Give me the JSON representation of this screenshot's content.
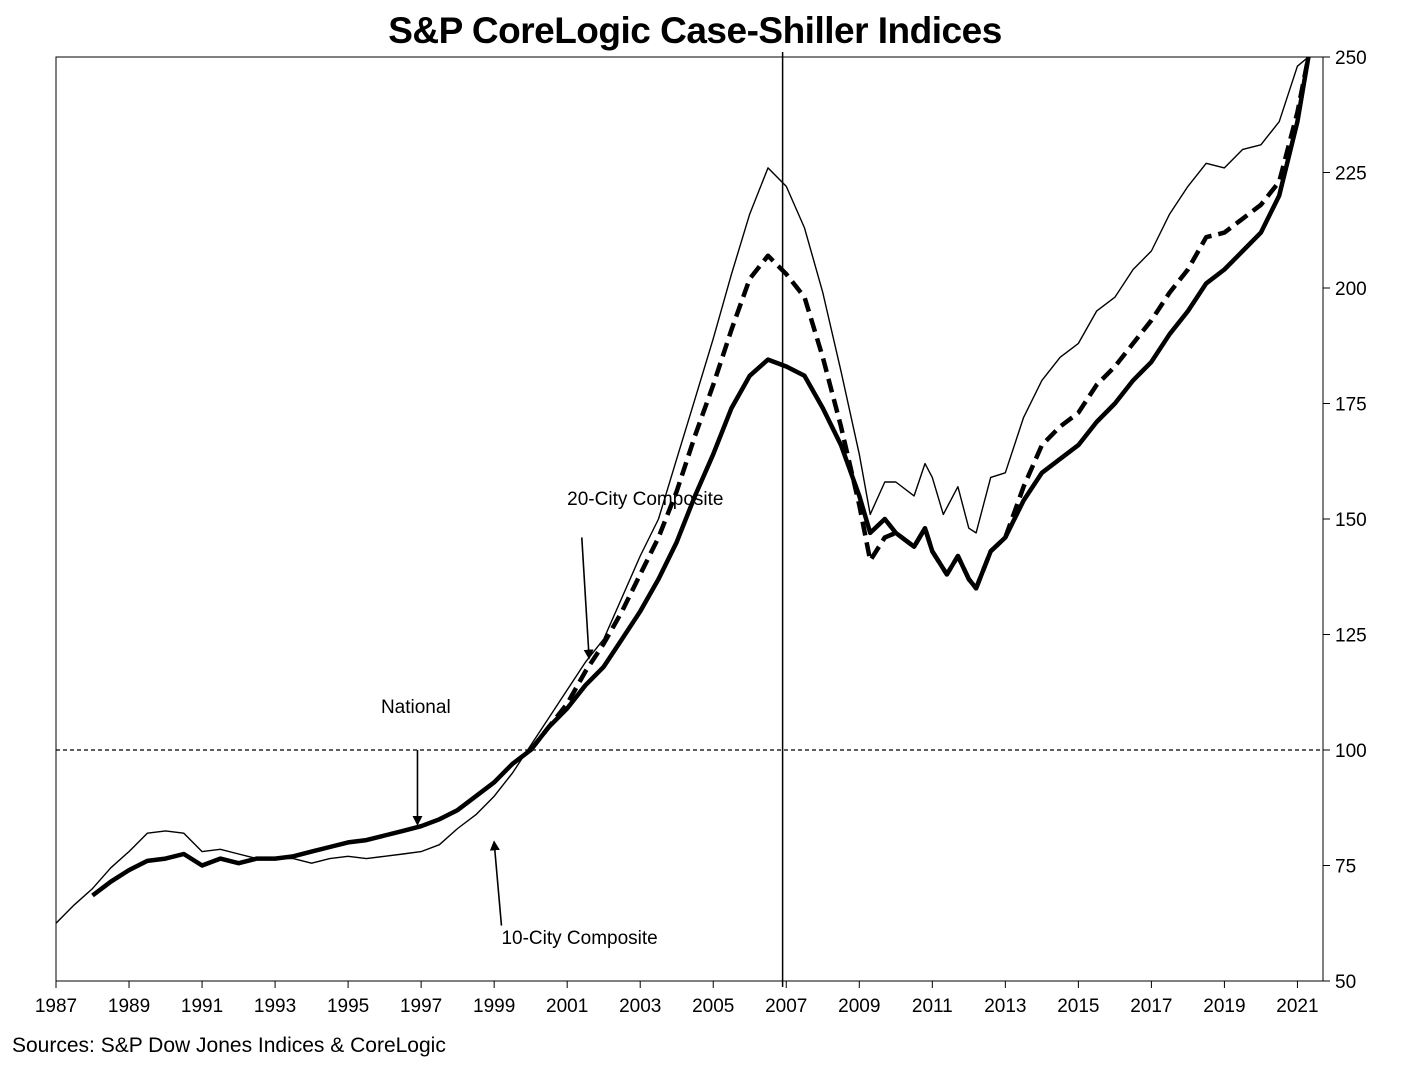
{
  "chart_data": {
    "type": "line",
    "title": "S&P CoreLogic Case-Shiller Indices",
    "source": "Sources:  S&P Dow Jones Indices & CoreLogic",
    "xlabel": "",
    "ylabel": "",
    "xlim": [
      1987,
      2021.7
    ],
    "ylim": [
      50,
      250
    ],
    "x_ticks": [
      1987,
      1989,
      1991,
      1993,
      1995,
      1997,
      1999,
      2001,
      2003,
      2005,
      2007,
      2009,
      2011,
      2013,
      2015,
      2017,
      2019,
      2021
    ],
    "y_ticks": [
      50,
      75,
      100,
      125,
      150,
      175,
      200,
      225,
      250
    ],
    "y_axis_side": "right",
    "grid": false,
    "reference_lines": [
      {
        "axis": "y",
        "value": 100,
        "style": "dashed"
      },
      {
        "axis": "x",
        "value": 2006.9,
        "style": "solid"
      }
    ],
    "series": [
      {
        "name": "10-City Composite",
        "style": "thin solid",
        "points": [
          [
            1987.0,
            62.5
          ],
          [
            1987.5,
            66.5
          ],
          [
            1988.0,
            70
          ],
          [
            1988.5,
            74.5
          ],
          [
            1989.0,
            78
          ],
          [
            1989.5,
            82
          ],
          [
            1990.0,
            82.5
          ],
          [
            1990.5,
            82
          ],
          [
            1991.0,
            78
          ],
          [
            1991.5,
            78.5
          ],
          [
            1992.0,
            77.5
          ],
          [
            1992.5,
            76.5
          ],
          [
            1993.0,
            76.5
          ],
          [
            1993.5,
            76.5
          ],
          [
            1994.0,
            75.5
          ],
          [
            1994.5,
            76.5
          ],
          [
            1995.0,
            77
          ],
          [
            1995.5,
            76.5
          ],
          [
            1996.0,
            77
          ],
          [
            1996.5,
            77.5
          ],
          [
            1997.0,
            78
          ],
          [
            1997.5,
            79.5
          ],
          [
            1998.0,
            83
          ],
          [
            1998.5,
            86
          ],
          [
            1999.0,
            90
          ],
          [
            1999.5,
            95
          ],
          [
            2000.0,
            101
          ],
          [
            2000.5,
            107
          ],
          [
            2001.0,
            113
          ],
          [
            2001.5,
            119
          ],
          [
            2002.0,
            124
          ],
          [
            2002.5,
            133
          ],
          [
            2003.0,
            142
          ],
          [
            2003.5,
            150
          ],
          [
            2004.0,
            163
          ],
          [
            2004.5,
            176
          ],
          [
            2005.0,
            189
          ],
          [
            2005.5,
            203
          ],
          [
            2006.0,
            216
          ],
          [
            2006.5,
            226
          ],
          [
            2007.0,
            222
          ],
          [
            2007.5,
            213
          ],
          [
            2008.0,
            199
          ],
          [
            2008.5,
            182
          ],
          [
            2009.0,
            164
          ],
          [
            2009.3,
            151
          ],
          [
            2009.7,
            158
          ],
          [
            2010.0,
            158
          ],
          [
            2010.5,
            155
          ],
          [
            2010.8,
            162
          ],
          [
            2011.0,
            159
          ],
          [
            2011.3,
            151
          ],
          [
            2011.7,
            157
          ],
          [
            2012.0,
            148
          ],
          [
            2012.2,
            147
          ],
          [
            2012.6,
            159
          ],
          [
            2013.0,
            160
          ],
          [
            2013.5,
            172
          ],
          [
            2014.0,
            180
          ],
          [
            2014.5,
            185
          ],
          [
            2015.0,
            188
          ],
          [
            2015.5,
            195
          ],
          [
            2016.0,
            198
          ],
          [
            2016.5,
            204
          ],
          [
            2017.0,
            208
          ],
          [
            2017.5,
            216
          ],
          [
            2018.0,
            222
          ],
          [
            2018.5,
            227
          ],
          [
            2019.0,
            226
          ],
          [
            2019.5,
            230
          ],
          [
            2020.0,
            231
          ],
          [
            2020.5,
            236
          ],
          [
            2021.0,
            248
          ],
          [
            2021.3,
            252
          ]
        ]
      },
      {
        "name": "20-City Composite",
        "style": "thick dashed",
        "points": [
          [
            2000.0,
            100
          ],
          [
            2000.5,
            105
          ],
          [
            2001.0,
            110
          ],
          [
            2001.5,
            117
          ],
          [
            2002.0,
            123
          ],
          [
            2002.5,
            130
          ],
          [
            2003.0,
            138
          ],
          [
            2003.5,
            146
          ],
          [
            2004.0,
            156
          ],
          [
            2004.5,
            168
          ],
          [
            2005.0,
            179
          ],
          [
            2005.5,
            191
          ],
          [
            2006.0,
            202
          ],
          [
            2006.5,
            207
          ],
          [
            2007.0,
            203
          ],
          [
            2007.5,
            198
          ],
          [
            2008.0,
            185
          ],
          [
            2008.5,
            170
          ],
          [
            2009.0,
            153
          ],
          [
            2009.3,
            141
          ],
          [
            2009.7,
            146
          ],
          [
            2010.0,
            147
          ],
          [
            2010.5,
            144
          ],
          [
            2010.8,
            148
          ],
          [
            2011.0,
            143
          ],
          [
            2011.4,
            138
          ],
          [
            2011.7,
            142
          ],
          [
            2012.0,
            137
          ],
          [
            2012.2,
            135
          ],
          [
            2012.6,
            143
          ],
          [
            2013.0,
            146
          ],
          [
            2013.5,
            157
          ],
          [
            2014.0,
            166
          ],
          [
            2014.5,
            170
          ],
          [
            2015.0,
            173
          ],
          [
            2015.5,
            179
          ],
          [
            2016.0,
            183
          ],
          [
            2016.5,
            188
          ],
          [
            2017.0,
            193
          ],
          [
            2017.5,
            199
          ],
          [
            2018.0,
            204
          ],
          [
            2018.5,
            211
          ],
          [
            2019.0,
            212
          ],
          [
            2019.5,
            215
          ],
          [
            2020.0,
            218
          ],
          [
            2020.5,
            223
          ],
          [
            2021.0,
            238
          ],
          [
            2021.3,
            250
          ]
        ]
      },
      {
        "name": "National",
        "style": "thick solid",
        "points": [
          [
            1988.0,
            68.5
          ],
          [
            1988.5,
            71.5
          ],
          [
            1989.0,
            74
          ],
          [
            1989.5,
            76
          ],
          [
            1990.0,
            76.5
          ],
          [
            1990.5,
            77.5
          ],
          [
            1991.0,
            75
          ],
          [
            1991.5,
            76.5
          ],
          [
            1992.0,
            75.5
          ],
          [
            1992.5,
            76.5
          ],
          [
            1993.0,
            76.5
          ],
          [
            1993.5,
            77
          ],
          [
            1994.0,
            78
          ],
          [
            1994.5,
            79
          ],
          [
            1995.0,
            80
          ],
          [
            1995.5,
            80.5
          ],
          [
            1996.0,
            81.5
          ],
          [
            1996.5,
            82.5
          ],
          [
            1997.0,
            83.5
          ],
          [
            1997.5,
            85
          ],
          [
            1998.0,
            87
          ],
          [
            1998.5,
            90
          ],
          [
            1999.0,
            93
          ],
          [
            1999.5,
            97
          ],
          [
            2000.0,
            100
          ],
          [
            2000.5,
            105
          ],
          [
            2001.0,
            109
          ],
          [
            2001.5,
            114
          ],
          [
            2002.0,
            118
          ],
          [
            2002.5,
            124
          ],
          [
            2003.0,
            130
          ],
          [
            2003.5,
            137
          ],
          [
            2004.0,
            145
          ],
          [
            2004.5,
            155
          ],
          [
            2005.0,
            164
          ],
          [
            2005.5,
            174
          ],
          [
            2006.0,
            181
          ],
          [
            2006.5,
            184.5
          ],
          [
            2007.0,
            183
          ],
          [
            2007.5,
            181
          ],
          [
            2008.0,
            174
          ],
          [
            2008.5,
            166
          ],
          [
            2009.0,
            155
          ],
          [
            2009.3,
            147
          ],
          [
            2009.7,
            150
          ],
          [
            2010.0,
            147
          ],
          [
            2010.5,
            144
          ],
          [
            2010.8,
            148
          ],
          [
            2011.0,
            143
          ],
          [
            2011.4,
            138
          ],
          [
            2011.7,
            142
          ],
          [
            2012.0,
            137
          ],
          [
            2012.2,
            135
          ],
          [
            2012.6,
            143
          ],
          [
            2013.0,
            146
          ],
          [
            2013.5,
            154
          ],
          [
            2014.0,
            160
          ],
          [
            2014.5,
            163
          ],
          [
            2015.0,
            166
          ],
          [
            2015.5,
            171
          ],
          [
            2016.0,
            175
          ],
          [
            2016.5,
            180
          ],
          [
            2017.0,
            184
          ],
          [
            2017.5,
            190
          ],
          [
            2018.0,
            195
          ],
          [
            2018.5,
            201
          ],
          [
            2019.0,
            204
          ],
          [
            2019.5,
            208
          ],
          [
            2020.0,
            212
          ],
          [
            2020.5,
            220
          ],
          [
            2021.0,
            236
          ],
          [
            2021.3,
            250
          ]
        ]
      }
    ],
    "annotations": [
      {
        "label": "20-City Composite",
        "text_at": [
          2001.0,
          153
        ],
        "arrow_from": [
          2001.4,
          146
        ],
        "arrow_to": [
          2001.6,
          120
        ]
      },
      {
        "label": "National",
        "text_at": [
          1995.9,
          108
        ],
        "arrow_from": [
          1996.9,
          100
        ],
        "arrow_to": [
          1996.9,
          84
        ]
      },
      {
        "label": "10-City Composite",
        "text_at": [
          1999.2,
          58
        ],
        "arrow_from": [
          1999.2,
          62
        ],
        "arrow_to": [
          1999.0,
          80
        ]
      }
    ]
  }
}
